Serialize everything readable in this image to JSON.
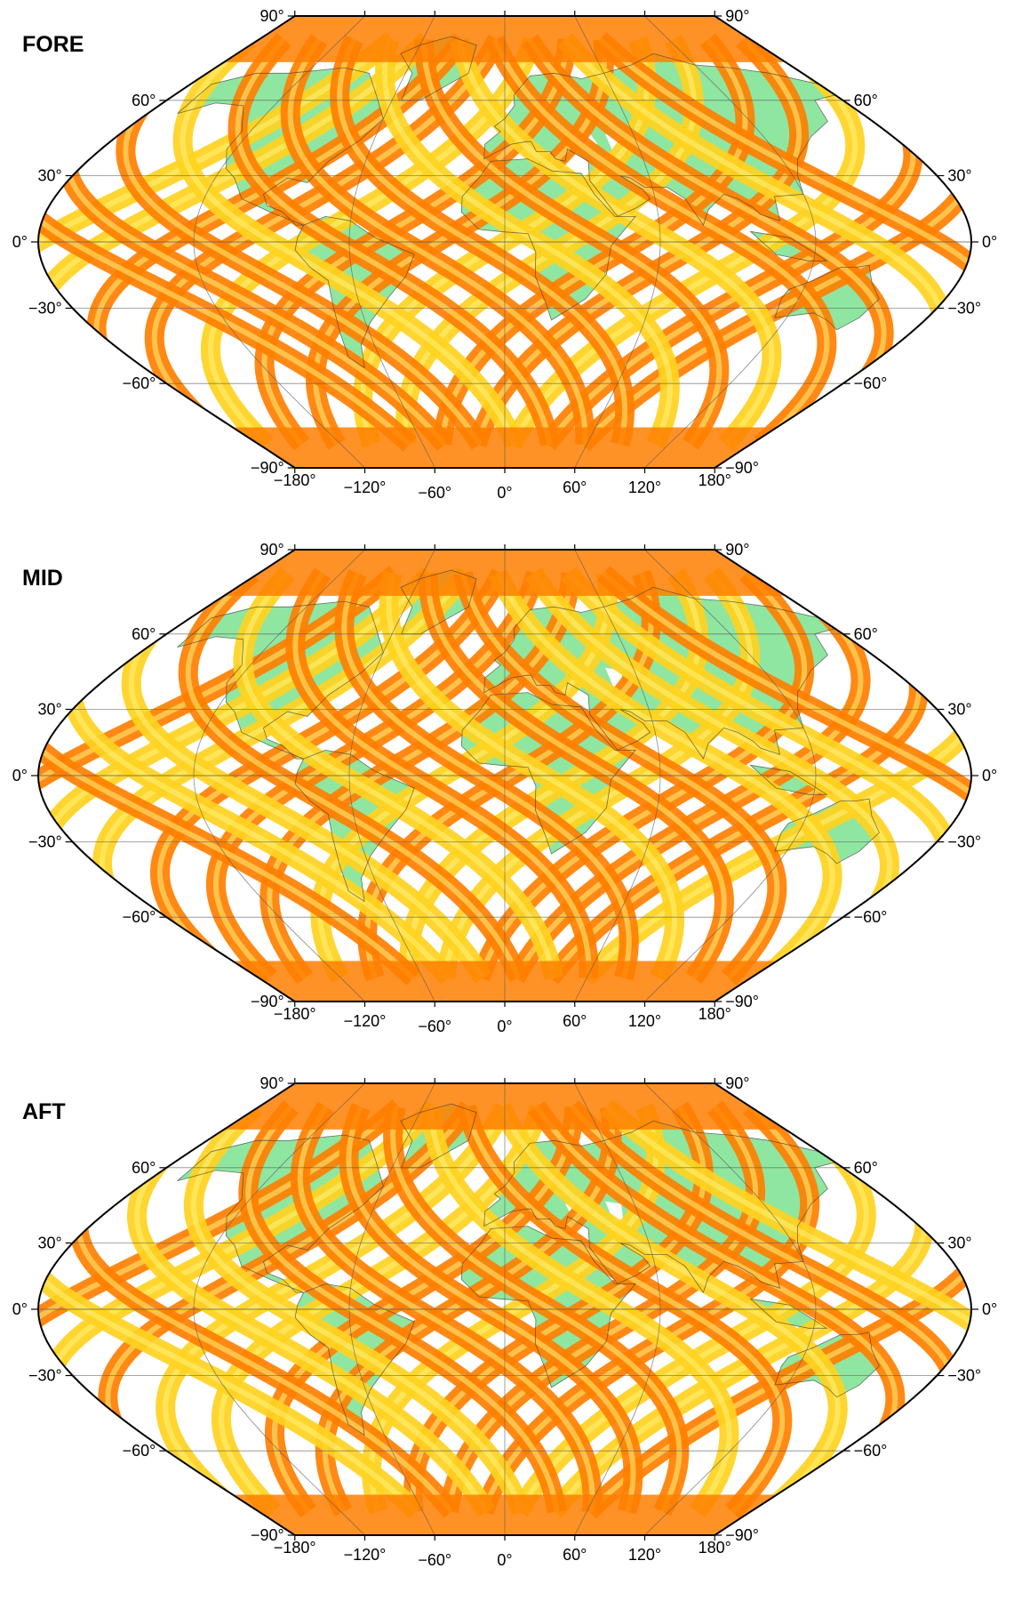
{
  "panels": [
    {
      "title": "FORE"
    },
    {
      "title": "MID"
    },
    {
      "title": "AFT"
    }
  ],
  "lat_ticks": [
    {
      "lat": 90,
      "label": "90°"
    },
    {
      "lat": 60,
      "label": "60°"
    },
    {
      "lat": 30,
      "label": "30°"
    },
    {
      "lat": 0,
      "label": "0°"
    },
    {
      "lat": -30,
      "label": "−30°"
    },
    {
      "lat": -60,
      "label": "−60°"
    },
    {
      "lat": -90,
      "label": "−90°"
    }
  ],
  "lon_ticks": [
    {
      "lon": -180,
      "label": "−180°"
    },
    {
      "lon": -120,
      "label": "−120°"
    },
    {
      "lon": -60,
      "label": "−60°"
    },
    {
      "lon": 0,
      "label": "0°"
    },
    {
      "lon": 60,
      "label": "60°"
    },
    {
      "lon": 120,
      "label": "120°"
    },
    {
      "lon": 180,
      "label": "180°"
    }
  ],
  "projection": "winkel-tripel-like",
  "colors": {
    "land": "#8fe6a1",
    "swath_base": "#ffd21f",
    "swath_dark": "#ff7f00",
    "swath_light": "#fff27a",
    "gap": "#ffffff",
    "graticule": "#5a5a5a",
    "coast": "#3a3a3a"
  }
}
